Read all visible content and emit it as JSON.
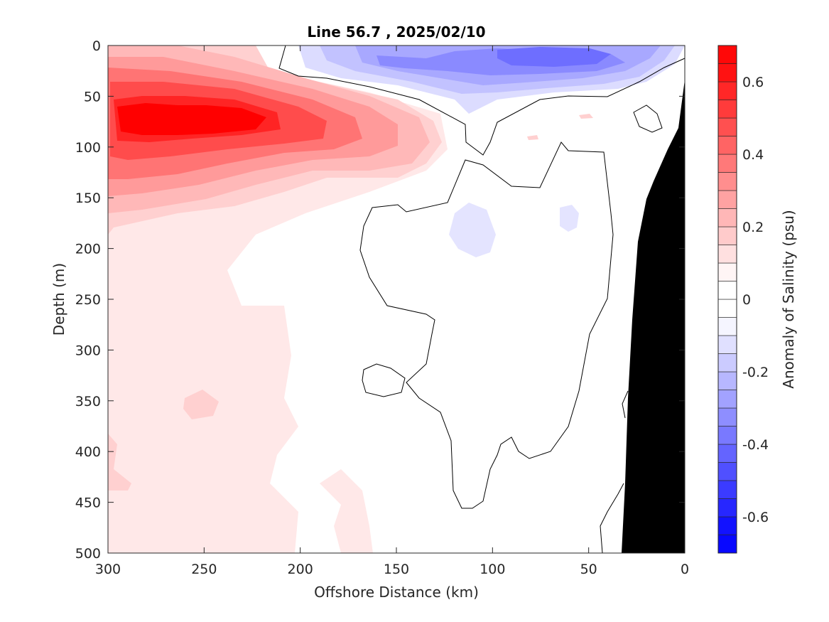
{
  "chart_data": {
    "type": "heatmap",
    "title": "Line 56.7 , 2025/02/10",
    "xlabel": "Offshore Distance (km)",
    "ylabel": "Depth (m)",
    "xlim": [
      300,
      0
    ],
    "x_reversed": true,
    "ylim": [
      0,
      500
    ],
    "y_reversed": true,
    "x_ticks": [
      "300",
      "250",
      "200",
      "150",
      "100",
      "50",
      "0"
    ],
    "y_ticks": [
      "0",
      "50",
      "100",
      "150",
      "200",
      "250",
      "300",
      "350",
      "400",
      "450",
      "500"
    ],
    "colorbar": {
      "label": "Anomaly of Salinity (psu)",
      "range": [
        -0.7,
        0.7
      ],
      "step": 0.05,
      "tick_labels": [
        "0.6",
        "0.4",
        "0.2",
        "0",
        "-0.2",
        "-0.4",
        "-0.6"
      ],
      "positive_color": "#ff0000",
      "negative_color": "#0000ff",
      "zero_color": "#ffffff"
    },
    "features": [
      {
        "name": "subsurface salty core",
        "x_range": [
          300,
          180
        ],
        "depth_range": [
          40,
          160
        ],
        "max_anomaly": 0.6
      },
      {
        "name": "surface fresh layer",
        "x_range": [
          200,
          0
        ],
        "depth_range": [
          0,
          50
        ],
        "min_anomaly": -0.3
      },
      {
        "name": "weak positive anomaly",
        "x_range": [
          300,
          200
        ],
        "depth_range": [
          150,
          500
        ],
        "anomaly": 0.05
      },
      {
        "name": "seafloor topography",
        "color": "#000000"
      }
    ],
    "grid": false
  }
}
